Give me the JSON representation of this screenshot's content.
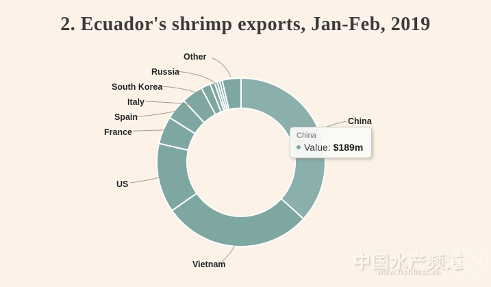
{
  "page": {
    "background": "#fcf2e7"
  },
  "header": {
    "title": "2. Ecuador's shrimp exports, Jan-Feb, 2019"
  },
  "chart_data": {
    "type": "pie",
    "subtype": "donut",
    "title": "2. Ecuador's shrimp exports, Jan-Feb, 2019",
    "value_unit": "USD millions",
    "legend": "none",
    "start_angle_deg": 0,
    "direction": "clockwise",
    "known_values": {
      "China": "$189m"
    },
    "segments": [
      {
        "label": "China",
        "percent": 36.7,
        "highlight": true,
        "value_label": "$189m"
      },
      {
        "label": "Vietnam",
        "percent": 28.6
      },
      {
        "label": "US",
        "percent": 13.3
      },
      {
        "label": "France",
        "percent": 5.3
      },
      {
        "label": "Spain",
        "percent": 4.2
      },
      {
        "label": "Italy",
        "percent": 4.1
      },
      {
        "label": "South Korea",
        "percent": 1.8
      },
      {
        "label": "Russia",
        "percent": 0.9
      },
      {
        "label": "",
        "percent": 0.5
      },
      {
        "label": "",
        "percent": 0.5
      },
      {
        "label": "",
        "percent": 0.5
      },
      {
        "label": "Other",
        "percent": 3.6
      }
    ],
    "colors": {
      "slice": "#7fa7a2",
      "slice_highlight": "#8bafab",
      "border": "#ffffff",
      "background": "#fcf2e7"
    }
  },
  "tooltip": {
    "header": "China",
    "label": "Value:",
    "value": "$189m"
  },
  "watermark": {
    "text": "中国水产频道",
    "url": "www.fishfirst.cn"
  }
}
